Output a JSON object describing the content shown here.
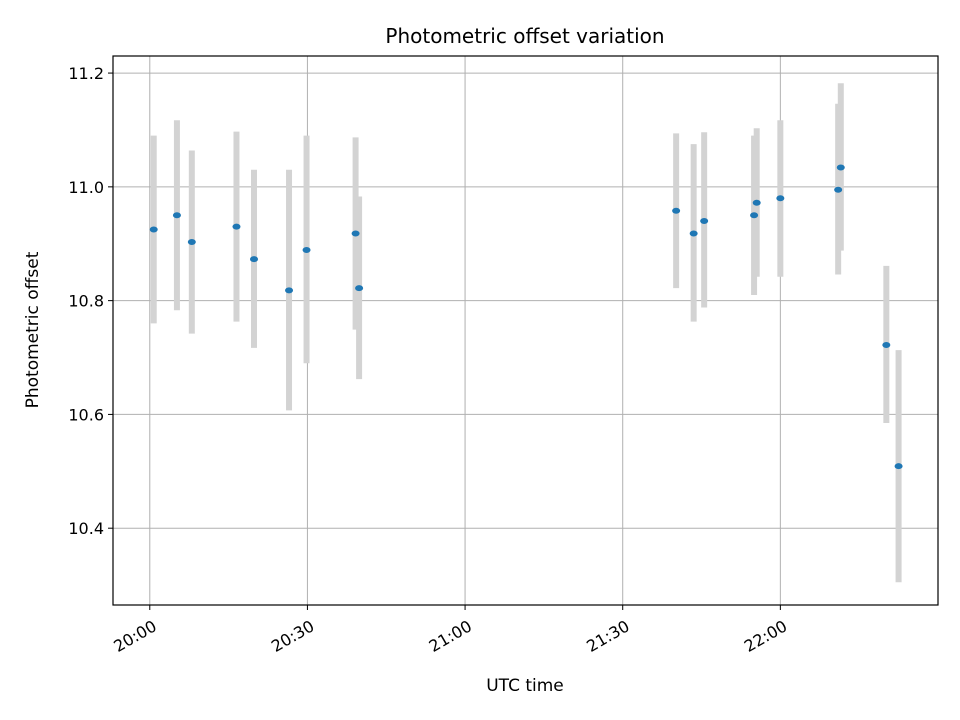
{
  "chart_data": {
    "type": "scatter",
    "title": "Photometric offset variation",
    "xlabel": "UTC time",
    "ylabel": "Photometric offset",
    "x_unit": "UTC time (HH:MM)",
    "xlim": [
      "19:53",
      "22:30"
    ],
    "ylim": [
      10.265,
      11.23
    ],
    "x_ticks": [
      "20:00",
      "20:30",
      "21:00",
      "21:30",
      "22:00"
    ],
    "y_ticks": [
      "10.4",
      "10.6",
      "10.8",
      "11.0",
      "11.2"
    ],
    "y_tick_values": [
      10.4,
      10.6,
      10.8,
      11.0,
      11.2
    ],
    "grid": true,
    "marker_color": "#1f77b4",
    "errorbar_color": "#d3d3d3",
    "points": [
      {
        "x": "20:00:45",
        "y": 10.925,
        "ylow": 10.76,
        "yhigh": 11.09
      },
      {
        "x": "20:05:10",
        "y": 10.95,
        "ylow": 10.783,
        "yhigh": 11.117
      },
      {
        "x": "20:08:00",
        "y": 10.903,
        "ylow": 10.742,
        "yhigh": 11.064
      },
      {
        "x": "20:16:30",
        "y": 10.93,
        "ylow": 10.763,
        "yhigh": 11.097
      },
      {
        "x": "20:19:50",
        "y": 10.873,
        "ylow": 10.717,
        "yhigh": 11.03
      },
      {
        "x": "20:26:30",
        "y": 10.818,
        "ylow": 10.607,
        "yhigh": 11.03
      },
      {
        "x": "20:29:50",
        "y": 10.889,
        "ylow": 10.69,
        "yhigh": 11.09
      },
      {
        "x": "20:39:10",
        "y": 10.918,
        "ylow": 10.749,
        "yhigh": 11.087
      },
      {
        "x": "20:39:50",
        "y": 10.822,
        "ylow": 10.662,
        "yhigh": 10.983
      },
      {
        "x": "21:40:10",
        "y": 10.958,
        "ylow": 10.822,
        "yhigh": 11.094
      },
      {
        "x": "21:43:30",
        "y": 10.918,
        "ylow": 10.763,
        "yhigh": 11.075
      },
      {
        "x": "21:45:30",
        "y": 10.94,
        "ylow": 10.788,
        "yhigh": 11.096
      },
      {
        "x": "21:55:00",
        "y": 10.95,
        "ylow": 10.81,
        "yhigh": 11.09
      },
      {
        "x": "21:55:30",
        "y": 10.972,
        "ylow": 10.842,
        "yhigh": 11.103
      },
      {
        "x": "22:00:00",
        "y": 10.98,
        "ylow": 10.842,
        "yhigh": 11.117
      },
      {
        "x": "22:11:00",
        "y": 10.995,
        "ylow": 10.846,
        "yhigh": 11.146
      },
      {
        "x": "22:11:30",
        "y": 11.034,
        "ylow": 10.888,
        "yhigh": 11.182
      },
      {
        "x": "22:20:10",
        "y": 10.722,
        "ylow": 10.585,
        "yhigh": 10.861
      },
      {
        "x": "22:22:30",
        "y": 10.509,
        "ylow": 10.305,
        "yhigh": 10.713
      }
    ]
  }
}
